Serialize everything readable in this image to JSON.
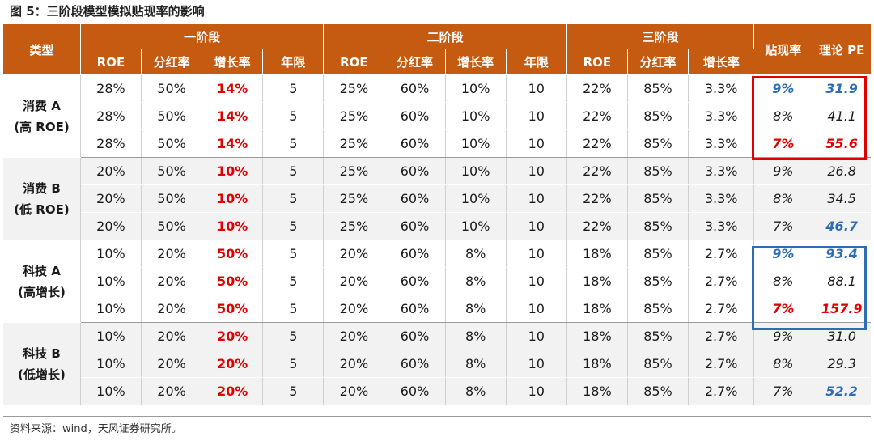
{
  "figure_title": "图 5：三阶段模型模拟贴现率的影响",
  "source_note": "资料来源：wind，天风证券研究所。",
  "headers": {
    "type": "类型",
    "stage1": "一阶段",
    "stage2": "二阶段",
    "stage3": "三阶段",
    "discount": "贴现率",
    "pe": "理论 PE",
    "roe": "ROE",
    "payout": "分红率",
    "growth": "增长率",
    "years": "年限"
  },
  "groups": [
    {
      "name_line1": "消费 A",
      "name_line2": "(高 ROE)",
      "shaded": false,
      "rows": [
        {
          "s1_roe": "28%",
          "s1_payout": "50%",
          "s1_growth": "14%",
          "s1_years": "5",
          "s2_roe": "25%",
          "s2_payout": "60%",
          "s2_growth": "10%",
          "s2_years": "10",
          "s3_roe": "22%",
          "s3_payout": "85%",
          "s3_growth": "3.3%",
          "discount": "9%",
          "pe": "31.9",
          "discount_style": "blue",
          "pe_style": "blue"
        },
        {
          "s1_roe": "28%",
          "s1_payout": "50%",
          "s1_growth": "14%",
          "s1_years": "5",
          "s2_roe": "25%",
          "s2_payout": "60%",
          "s2_growth": "10%",
          "s2_years": "10",
          "s3_roe": "22%",
          "s3_payout": "85%",
          "s3_growth": "3.3%",
          "discount": "8%",
          "pe": "41.1",
          "discount_style": "ital",
          "pe_style": "ital"
        },
        {
          "s1_roe": "28%",
          "s1_payout": "50%",
          "s1_growth": "14%",
          "s1_years": "5",
          "s2_roe": "25%",
          "s2_payout": "60%",
          "s2_growth": "10%",
          "s2_years": "10",
          "s3_roe": "22%",
          "s3_payout": "85%",
          "s3_growth": "3.3%",
          "discount": "7%",
          "pe": "55.6",
          "discount_style": "red",
          "pe_style": "red"
        }
      ]
    },
    {
      "name_line1": "消费 B",
      "name_line2": "(低 ROE)",
      "shaded": true,
      "rows": [
        {
          "s1_roe": "20%",
          "s1_payout": "50%",
          "s1_growth": "10%",
          "s1_years": "5",
          "s2_roe": "25%",
          "s2_payout": "60%",
          "s2_growth": "10%",
          "s2_years": "10",
          "s3_roe": "22%",
          "s3_payout": "85%",
          "s3_growth": "3.3%",
          "discount": "9%",
          "pe": "26.8",
          "discount_style": "ital",
          "pe_style": "ital"
        },
        {
          "s1_roe": "20%",
          "s1_payout": "50%",
          "s1_growth": "10%",
          "s1_years": "5",
          "s2_roe": "25%",
          "s2_payout": "60%",
          "s2_growth": "10%",
          "s2_years": "10",
          "s3_roe": "22%",
          "s3_payout": "85%",
          "s3_growth": "3.3%",
          "discount": "8%",
          "pe": "34.5",
          "discount_style": "ital",
          "pe_style": "ital"
        },
        {
          "s1_roe": "20%",
          "s1_payout": "50%",
          "s1_growth": "10%",
          "s1_years": "5",
          "s2_roe": "25%",
          "s2_payout": "60%",
          "s2_growth": "10%",
          "s2_years": "10",
          "s3_roe": "22%",
          "s3_payout": "85%",
          "s3_growth": "3.3%",
          "discount": "7%",
          "pe": "46.7",
          "discount_style": "ital",
          "pe_style": "blue"
        }
      ]
    },
    {
      "name_line1": "科技 A",
      "name_line2": "(高增长)",
      "shaded": false,
      "rows": [
        {
          "s1_roe": "10%",
          "s1_payout": "20%",
          "s1_growth": "50%",
          "s1_years": "5",
          "s2_roe": "20%",
          "s2_payout": "60%",
          "s2_growth": "8%",
          "s2_years": "10",
          "s3_roe": "18%",
          "s3_payout": "85%",
          "s3_growth": "2.7%",
          "discount": "9%",
          "pe": "93.4",
          "discount_style": "blue",
          "pe_style": "blue"
        },
        {
          "s1_roe": "10%",
          "s1_payout": "20%",
          "s1_growth": "50%",
          "s1_years": "5",
          "s2_roe": "20%",
          "s2_payout": "60%",
          "s2_growth": "8%",
          "s2_years": "10",
          "s3_roe": "18%",
          "s3_payout": "85%",
          "s3_growth": "2.7%",
          "discount": "8%",
          "pe": "88.1",
          "discount_style": "ital",
          "pe_style": "ital"
        },
        {
          "s1_roe": "10%",
          "s1_payout": "20%",
          "s1_growth": "50%",
          "s1_years": "5",
          "s2_roe": "20%",
          "s2_payout": "60%",
          "s2_growth": "8%",
          "s2_years": "10",
          "s3_roe": "18%",
          "s3_payout": "85%",
          "s3_growth": "2.7%",
          "discount": "7%",
          "pe": "157.9",
          "discount_style": "red",
          "pe_style": "red"
        }
      ]
    },
    {
      "name_line1": "科技 B",
      "name_line2": "(低增长)",
      "shaded": true,
      "rows": [
        {
          "s1_roe": "10%",
          "s1_payout": "20%",
          "s1_growth": "20%",
          "s1_years": "5",
          "s2_roe": "20%",
          "s2_payout": "60%",
          "s2_growth": "8%",
          "s2_years": "10",
          "s3_roe": "18%",
          "s3_payout": "85%",
          "s3_growth": "2.7%",
          "discount": "9%",
          "pe": "31.0",
          "discount_style": "ital",
          "pe_style": "ital"
        },
        {
          "s1_roe": "10%",
          "s1_payout": "20%",
          "s1_growth": "20%",
          "s1_years": "5",
          "s2_roe": "20%",
          "s2_payout": "60%",
          "s2_growth": "8%",
          "s2_years": "10",
          "s3_roe": "18%",
          "s3_payout": "85%",
          "s3_growth": "2.7%",
          "discount": "8%",
          "pe": "29.3",
          "discount_style": "ital",
          "pe_style": "ital"
        },
        {
          "s1_roe": "10%",
          "s1_payout": "20%",
          "s1_growth": "20%",
          "s1_years": "5",
          "s2_roe": "20%",
          "s2_payout": "60%",
          "s2_growth": "8%",
          "s2_years": "10",
          "s3_roe": "18%",
          "s3_payout": "85%",
          "s3_growth": "2.7%",
          "discount": "7%",
          "pe": "52.2",
          "discount_style": "ital",
          "pe_style": "blue"
        }
      ]
    }
  ],
  "colors": {
    "header_bg": "#C55A11",
    "highlight_red": "#e00000",
    "highlight_blue": "#2E6DB4",
    "shade_bg": "#F2F2F2"
  }
}
